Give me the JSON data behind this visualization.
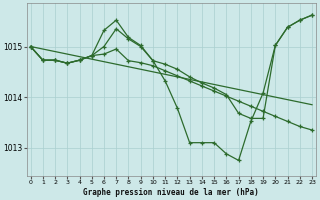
{
  "title": "Graphe pression niveau de la mer (hPa)",
  "bg_color": "#cde8e8",
  "grid_color": "#aacfcf",
  "line_color": "#2d6b2d",
  "x_ticks": [
    0,
    1,
    2,
    3,
    4,
    5,
    6,
    7,
    8,
    9,
    10,
    11,
    12,
    13,
    14,
    15,
    16,
    17,
    18,
    19,
    20,
    21,
    22,
    23
  ],
  "y_ticks": [
    1013,
    1014,
    1015
  ],
  "ylim": [
    1012.45,
    1015.85
  ],
  "xlim": [
    -0.3,
    23.3
  ],
  "s_zigzag": [
    1015.0,
    1014.73,
    1014.73,
    1014.67,
    1014.73,
    1014.82,
    1015.0,
    1015.35,
    1015.15,
    1015.0,
    1014.72,
    1014.32,
    1013.78,
    1013.1,
    1013.1,
    1013.1,
    1012.88,
    1012.75,
    1013.52,
    1014.08,
    1015.02,
    1015.38,
    1015.52,
    1015.62
  ],
  "s_trend": [
    1015.0,
    1014.95,
    1014.9,
    1014.85,
    1014.8,
    1014.75,
    1014.7,
    1014.65,
    1014.6,
    1014.55,
    1014.5,
    1014.45,
    1014.4,
    1014.35,
    1014.3,
    1014.25,
    1014.2,
    1014.15,
    1014.1,
    1014.05,
    1014.0,
    1013.95,
    1013.9,
    1013.85
  ],
  "s_peak": [
    1015.0,
    1014.73,
    1014.73,
    1014.67,
    1014.73,
    1014.82,
    1015.32,
    1015.52,
    1015.18,
    1015.02,
    1014.72,
    1014.65,
    1014.55,
    1014.4,
    1014.28,
    1014.18,
    1014.05,
    1013.68,
    1013.58,
    1013.58,
    1015.02,
    1015.38,
    1015.52,
    1015.62
  ],
  "s_decline": [
    1015.0,
    1014.73,
    1014.73,
    1014.67,
    1014.73,
    1014.82,
    1014.85,
    1014.95,
    1014.72,
    1014.68,
    1014.62,
    1014.52,
    1014.42,
    1014.32,
    1014.22,
    1014.12,
    1014.02,
    1013.92,
    1013.82,
    1013.72,
    1013.62,
    1013.52,
    1013.42,
    1013.35
  ]
}
